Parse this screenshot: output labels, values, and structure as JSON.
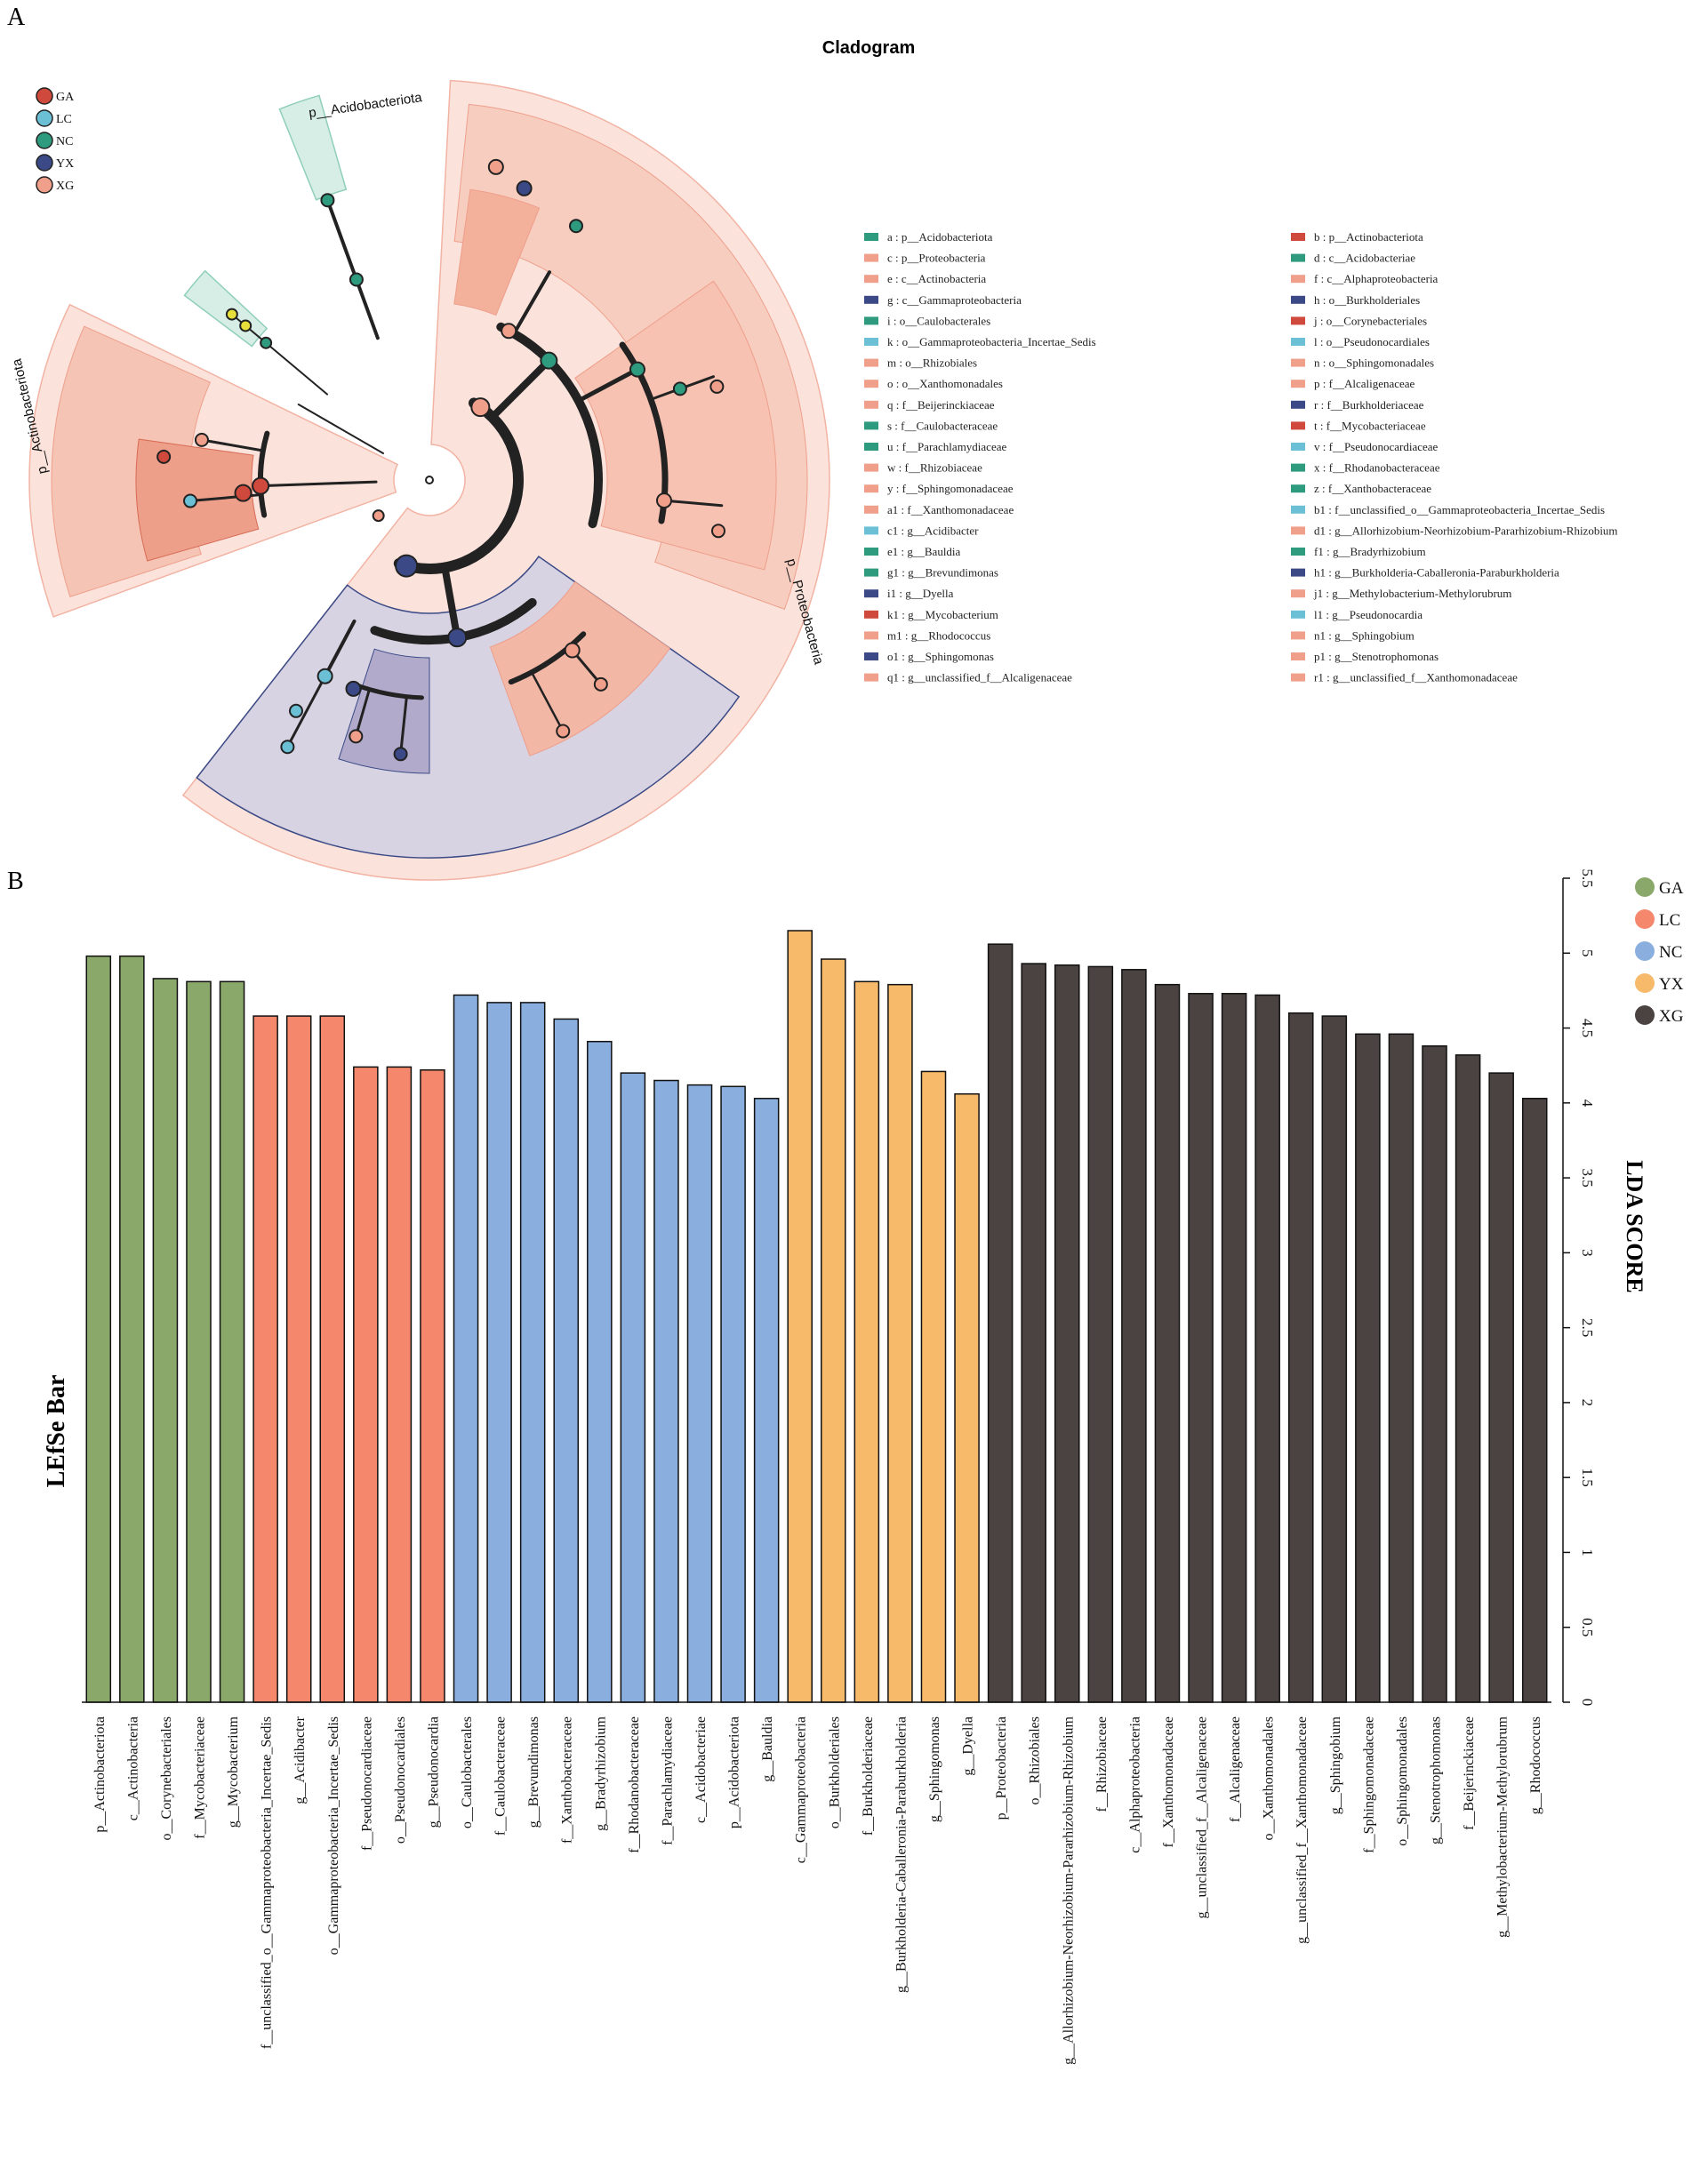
{
  "panel_a": {
    "label": "A",
    "title": "Cladogram",
    "group_legend": [
      {
        "name": "GA",
        "color": "#cf4a3c"
      },
      {
        "name": "LC",
        "color": "#6cc0d6"
      },
      {
        "name": "NC",
        "color": "#2e9a7e"
      },
      {
        "name": "YX",
        "color": "#3b4a86"
      },
      {
        "name": "XG",
        "color": "#f0a08a"
      }
    ],
    "sector_labels": {
      "acido": "p__Acidobacteriota",
      "actino": "p__Actinobacteriota",
      "proteo": "p__Proteobacteria"
    },
    "key_column1": [
      {
        "text": "a : p__Acidobacteriota",
        "color": "#2e9a7e"
      },
      {
        "text": "c : p__Proteobacteria",
        "color": "#f0a08a"
      },
      {
        "text": "e : c__Actinobacteria",
        "color": "#f0a08a"
      },
      {
        "text": "g : c__Gammaproteobacteria",
        "color": "#3b4a86"
      },
      {
        "text": "i : o__Caulobacterales",
        "color": "#2e9a7e"
      },
      {
        "text": "k : o__Gammaproteobacteria_Incertae_Sedis",
        "color": "#6cc0d6"
      },
      {
        "text": "m : o__Rhizobiales",
        "color": "#f0a08a"
      },
      {
        "text": "o : o__Xanthomonadales",
        "color": "#f0a08a"
      },
      {
        "text": "q : f__Beijerinckiaceae",
        "color": "#f0a08a"
      },
      {
        "text": "s : f__Caulobacteraceae",
        "color": "#2e9a7e"
      },
      {
        "text": "u : f__Parachlamydiaceae",
        "color": "#2e9a7e"
      },
      {
        "text": "w : f__Rhizobiaceae",
        "color": "#f0a08a"
      },
      {
        "text": "y : f__Sphingomonadaceae",
        "color": "#f0a08a"
      },
      {
        "text": "a1 : f__Xanthomonadaceae",
        "color": "#f0a08a"
      },
      {
        "text": "c1 : g__Acidibacter",
        "color": "#6cc0d6"
      },
      {
        "text": "e1 : g__Bauldia",
        "color": "#2e9a7e"
      },
      {
        "text": "g1 : g__Brevundimonas",
        "color": "#2e9a7e"
      },
      {
        "text": "i1 : g__Dyella",
        "color": "#3b4a86"
      },
      {
        "text": "k1 : g__Mycobacterium",
        "color": "#cf4a3c"
      },
      {
        "text": "m1 : g__Rhodococcus",
        "color": "#f0a08a"
      },
      {
        "text": "o1 : g__Sphingomonas",
        "color": "#3b4a86"
      },
      {
        "text": "q1 : g__unclassified_f__Alcaligenaceae",
        "color": "#f0a08a"
      }
    ],
    "key_column2": [
      {
        "text": "b : p__Actinobacteriota",
        "color": "#cf4a3c"
      },
      {
        "text": "d : c__Acidobacteriae",
        "color": "#2e9a7e"
      },
      {
        "text": "f : c__Alphaproteobacteria",
        "color": "#f0a08a"
      },
      {
        "text": "h : o__Burkholderiales",
        "color": "#3b4a86"
      },
      {
        "text": "j : o__Corynebacteriales",
        "color": "#cf4a3c"
      },
      {
        "text": "l : o__Pseudonocardiales",
        "color": "#6cc0d6"
      },
      {
        "text": "n : o__Sphingomonadales",
        "color": "#f0a08a"
      },
      {
        "text": "p : f__Alcaligenaceae",
        "color": "#f0a08a"
      },
      {
        "text": "r : f__Burkholderiaceae",
        "color": "#3b4a86"
      },
      {
        "text": "t : f__Mycobacteriaceae",
        "color": "#cf4a3c"
      },
      {
        "text": "v : f__Pseudonocardiaceae",
        "color": "#6cc0d6"
      },
      {
        "text": "x : f__Rhodanobacteraceae",
        "color": "#2e9a7e"
      },
      {
        "text": "z : f__Xanthobacteraceae",
        "color": "#2e9a7e"
      },
      {
        "text": "b1 : f__unclassified_o__Gammaproteobacteria_Incertae_Sedis",
        "color": "#6cc0d6"
      },
      {
        "text": "d1 : g__Allorhizobium-Neorhizobium-Pararhizobium-Rhizobium",
        "color": "#f0a08a"
      },
      {
        "text": "f1 : g__Bradyrhizobium",
        "color": "#2e9a7e"
      },
      {
        "text": "h1 : g__Burkholderia-Caballeronia-Paraburkholderia",
        "color": "#3b4a86"
      },
      {
        "text": "j1 : g__Methylobacterium-Methylorubrum",
        "color": "#f0a08a"
      },
      {
        "text": "l1 : g__Pseudonocardia",
        "color": "#6cc0d6"
      },
      {
        "text": "n1 : g__Sphingobium",
        "color": "#f0a08a"
      },
      {
        "text": "p1 : g__Stenotrophomonas",
        "color": "#f0a08a"
      },
      {
        "text": "r1 : g__unclassified_f__Xanthomonadaceae",
        "color": "#f0a08a"
      }
    ]
  },
  "panel_b": {
    "label": "B"
  },
  "chart_data": {
    "type": "bar",
    "title": "LEfSe Bar",
    "ylabel": "LDA SCORE",
    "ylim": [
      0,
      5.5
    ],
    "yticks": [
      "0",
      "0.5",
      "1",
      "1.5",
      "2",
      "2.5",
      "3",
      "3.5",
      "4",
      "4.5",
      "5",
      "5.5"
    ],
    "legend_position": "top-right",
    "groups": [
      {
        "name": "GA",
        "color": "#8aa86a"
      },
      {
        "name": "LC",
        "color": "#f4876c"
      },
      {
        "name": "NC",
        "color": "#8aaedd"
      },
      {
        "name": "YX",
        "color": "#f7b96a"
      },
      {
        "name": "XG",
        "color": "#4b4341"
      }
    ],
    "bars": [
      {
        "label": "p__Actinobacteriota",
        "value": 4.98,
        "group": "GA"
      },
      {
        "label": "c__Actinobacteria",
        "value": 4.98,
        "group": "GA"
      },
      {
        "label": "o__Corynebacteriales",
        "value": 4.83,
        "group": "GA"
      },
      {
        "label": "f__Mycobacteriaceae",
        "value": 4.81,
        "group": "GA"
      },
      {
        "label": "g__Mycobacterium",
        "value": 4.81,
        "group": "GA"
      },
      {
        "label": "f__unclassified_o__Gammaproteobacteria_Incertae_Sedis",
        "value": 4.58,
        "group": "LC"
      },
      {
        "label": "g__Acidibacter",
        "value": 4.58,
        "group": "LC"
      },
      {
        "label": "o__Gammaproteobacteria_Incertae_Sedis",
        "value": 4.58,
        "group": "LC"
      },
      {
        "label": "f__Pseudonocardiaceae",
        "value": 4.24,
        "group": "LC"
      },
      {
        "label": "o__Pseudonocardiales",
        "value": 4.24,
        "group": "LC"
      },
      {
        "label": "g__Pseudonocardia",
        "value": 4.22,
        "group": "LC"
      },
      {
        "label": "o__Caulobacterales",
        "value": 4.72,
        "group": "NC"
      },
      {
        "label": "f__Caulobacteraceae",
        "value": 4.67,
        "group": "NC"
      },
      {
        "label": "g__Brevundimonas",
        "value": 4.67,
        "group": "NC"
      },
      {
        "label": "f__Xanthobacteraceae",
        "value": 4.56,
        "group": "NC"
      },
      {
        "label": "g__Bradyrhizobium",
        "value": 4.41,
        "group": "NC"
      },
      {
        "label": "f__Rhodanobacteraceae",
        "value": 4.2,
        "group": "NC"
      },
      {
        "label": "f__Parachlamydiaceae",
        "value": 4.15,
        "group": "NC"
      },
      {
        "label": "c__Acidobacteriae",
        "value": 4.12,
        "group": "NC"
      },
      {
        "label": "p__Acidobacteriota",
        "value": 4.11,
        "group": "NC"
      },
      {
        "label": "g__Bauldia",
        "value": 4.03,
        "group": "NC"
      },
      {
        "label": "c__Gammaproteobacteria",
        "value": 5.15,
        "group": "YX"
      },
      {
        "label": "o__Burkholderiales",
        "value": 4.96,
        "group": "YX"
      },
      {
        "label": "f__Burkholderiaceae",
        "value": 4.81,
        "group": "YX"
      },
      {
        "label": "g__Burkholderia-Caballeronia-Paraburkholderia",
        "value": 4.79,
        "group": "YX"
      },
      {
        "label": "g__Sphingomonas",
        "value": 4.21,
        "group": "YX"
      },
      {
        "label": "g__Dyella",
        "value": 4.06,
        "group": "YX"
      },
      {
        "label": "p__Proteobacteria",
        "value": 5.06,
        "group": "XG"
      },
      {
        "label": "o__Rhizobiales",
        "value": 4.93,
        "group": "XG"
      },
      {
        "label": "g__Allorhizobium-Neorhizobium-Pararhizobium-Rhizobium",
        "value": 4.92,
        "group": "XG"
      },
      {
        "label": "f__Rhizobiaceae",
        "value": 4.91,
        "group": "XG"
      },
      {
        "label": "c__Alphaproteobacteria",
        "value": 4.89,
        "group": "XG"
      },
      {
        "label": "f__Xanthomonadaceae",
        "value": 4.79,
        "group": "XG"
      },
      {
        "label": "g__unclassified_f__Alcaligenaceae",
        "value": 4.73,
        "group": "XG"
      },
      {
        "label": "f__Alcaligenaceae",
        "value": 4.73,
        "group": "XG"
      },
      {
        "label": "o__Xanthomonadales",
        "value": 4.72,
        "group": "XG"
      },
      {
        "label": "g__unclassified_f__Xanthomonadaceae",
        "value": 4.6,
        "group": "XG"
      },
      {
        "label": "g__Sphingobium",
        "value": 4.58,
        "group": "XG"
      },
      {
        "label": "f__Sphingomonadaceae",
        "value": 4.46,
        "group": "XG"
      },
      {
        "label": "o__Sphingomonadales",
        "value": 4.46,
        "group": "XG"
      },
      {
        "label": "g__Stenotrophomonas",
        "value": 4.38,
        "group": "XG"
      },
      {
        "label": "f__Beijerinckiaceae",
        "value": 4.32,
        "group": "XG"
      },
      {
        "label": "g__Methylobacterium-Methylorubrum",
        "value": 4.2,
        "group": "XG"
      },
      {
        "label": "g__Rhodococcus",
        "value": 4.03,
        "group": "XG"
      }
    ]
  }
}
